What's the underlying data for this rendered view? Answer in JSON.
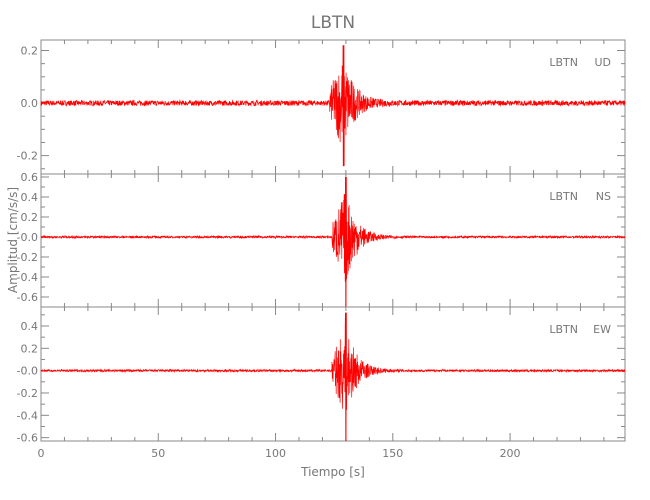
{
  "chart_data": {
    "type": "line",
    "title": "LBTN",
    "xlabel": "Tiempo [s]",
    "ylabel": "Amplitud [cm/s/s]",
    "xlim": [
      0,
      249
    ],
    "xticks": [
      0,
      50,
      100,
      150,
      200
    ],
    "line_color": "#ff0000",
    "axis_color": "#888888",
    "panels": [
      {
        "station": "LBTN",
        "component": "UD",
        "ylim": [
          -0.27,
          0.24
        ],
        "yticks": [
          "0.2",
          "0.0",
          "-0.2"
        ],
        "ytick_values": [
          0.2,
          0.0,
          -0.2
        ],
        "onset_s": 123,
        "peak_s": 129,
        "max_amplitude": 0.22,
        "min_amplitude": -0.24,
        "noise_amplitude": 0.01
      },
      {
        "station": "LBTN",
        "component": "NS",
        "ylim": [
          -0.7,
          0.63
        ],
        "yticks": [
          "0.6",
          "0.4",
          "0.2",
          "-0.0",
          "-0.2",
          "-0.4",
          "-0.6"
        ],
        "ytick_values": [
          0.6,
          0.4,
          0.2,
          0.0,
          -0.2,
          -0.4,
          -0.6
        ],
        "onset_s": 124,
        "peak_s": 130,
        "max_amplitude": 0.6,
        "min_amplitude": -0.7,
        "noise_amplitude": 0.01
      },
      {
        "station": "LBTN",
        "component": "EW",
        "ylim": [
          -0.63,
          0.57
        ],
        "yticks": [
          "0.4",
          "0.2",
          "-0.0",
          "-0.2",
          "-0.4",
          "-0.6"
        ],
        "ytick_values": [
          0.4,
          0.2,
          0.0,
          -0.2,
          -0.4,
          -0.6
        ],
        "onset_s": 124,
        "peak_s": 130,
        "max_amplitude": 0.52,
        "min_amplitude": -0.63,
        "noise_amplitude": 0.01
      }
    ]
  }
}
